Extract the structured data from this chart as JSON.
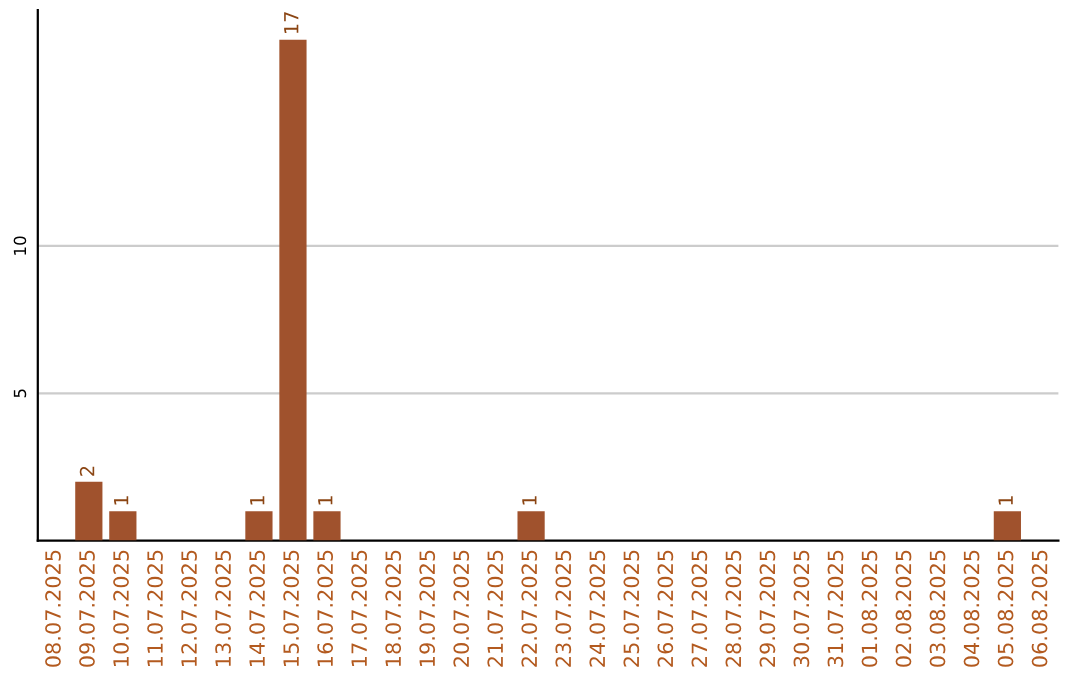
{
  "chart_data": {
    "type": "bar",
    "categories": [
      "08.07.2025",
      "09.07.2025",
      "10.07.2025",
      "11.07.2025",
      "12.07.2025",
      "13.07.2025",
      "14.07.2025",
      "15.07.2025",
      "16.07.2025",
      "17.07.2025",
      "18.07.2025",
      "19.07.2025",
      "20.07.2025",
      "21.07.2025",
      "22.07.2025",
      "23.07.2025",
      "24.07.2025",
      "25.07.2025",
      "26.07.2025",
      "27.07.2025",
      "28.07.2025",
      "29.07.2025",
      "30.07.2025",
      "31.07.2025",
      "01.08.2025",
      "02.08.2025",
      "03.08.2025",
      "04.08.2025",
      "05.08.2025",
      "06.08.2025"
    ],
    "values": [
      0,
      2,
      1,
      0,
      0,
      0,
      1,
      17,
      1,
      0,
      0,
      0,
      0,
      0,
      1,
      0,
      0,
      0,
      0,
      0,
      0,
      0,
      0,
      0,
      0,
      0,
      0,
      0,
      1,
      0
    ],
    "value_labels": [
      null,
      "2",
      "1",
      null,
      null,
      null,
      "1",
      "17",
      "1",
      null,
      null,
      null,
      null,
      null,
      "1",
      null,
      null,
      null,
      null,
      null,
      null,
      null,
      null,
      null,
      null,
      null,
      null,
      null,
      "1",
      null
    ],
    "color": "#a0522d",
    "ylim": [
      0,
      18
    ],
    "yticks": [
      5,
      10
    ],
    "grid": "y",
    "legend": false
  }
}
